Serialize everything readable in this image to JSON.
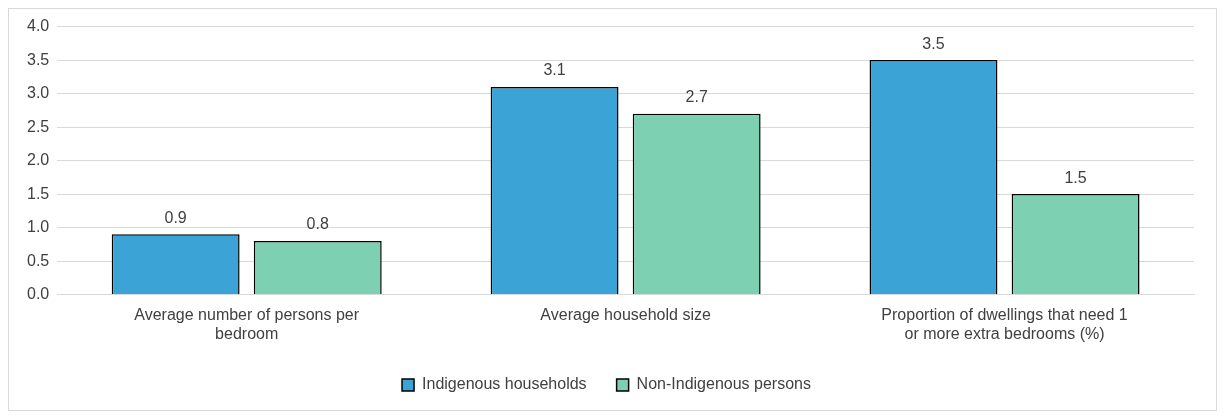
{
  "chart_data": {
    "type": "bar",
    "categories": [
      "Average number of persons per bedroom",
      "Average household size",
      "Proportion of dwellings that need 1 or more extra bedrooms (%)"
    ],
    "series": [
      {
        "name": "Indigenous households",
        "color": "#3ba3d6",
        "values": [
          0.9,
          3.1,
          3.5
        ]
      },
      {
        "name": "Non-Indigenous persons",
        "color": "#7dd0b2",
        "values": [
          0.8,
          2.7,
          1.5
        ]
      }
    ],
    "ylim": [
      0,
      4
    ],
    "yticks": [
      {
        "value": 0,
        "label": "0.0"
      },
      {
        "value": 0.5,
        "label": "0.5"
      },
      {
        "value": 1,
        "label": "1.0"
      },
      {
        "value": 1.5,
        "label": "1.5"
      },
      {
        "value": 2,
        "label": "2.0"
      },
      {
        "value": 2.5,
        "label": "2.5"
      },
      {
        "value": 3,
        "label": "3.0"
      },
      {
        "value": 3.5,
        "label": "3.5"
      },
      {
        "value": 4,
        "label": "4.0"
      }
    ],
    "grid": "y",
    "legend": "bottom",
    "data_labels": true
  }
}
